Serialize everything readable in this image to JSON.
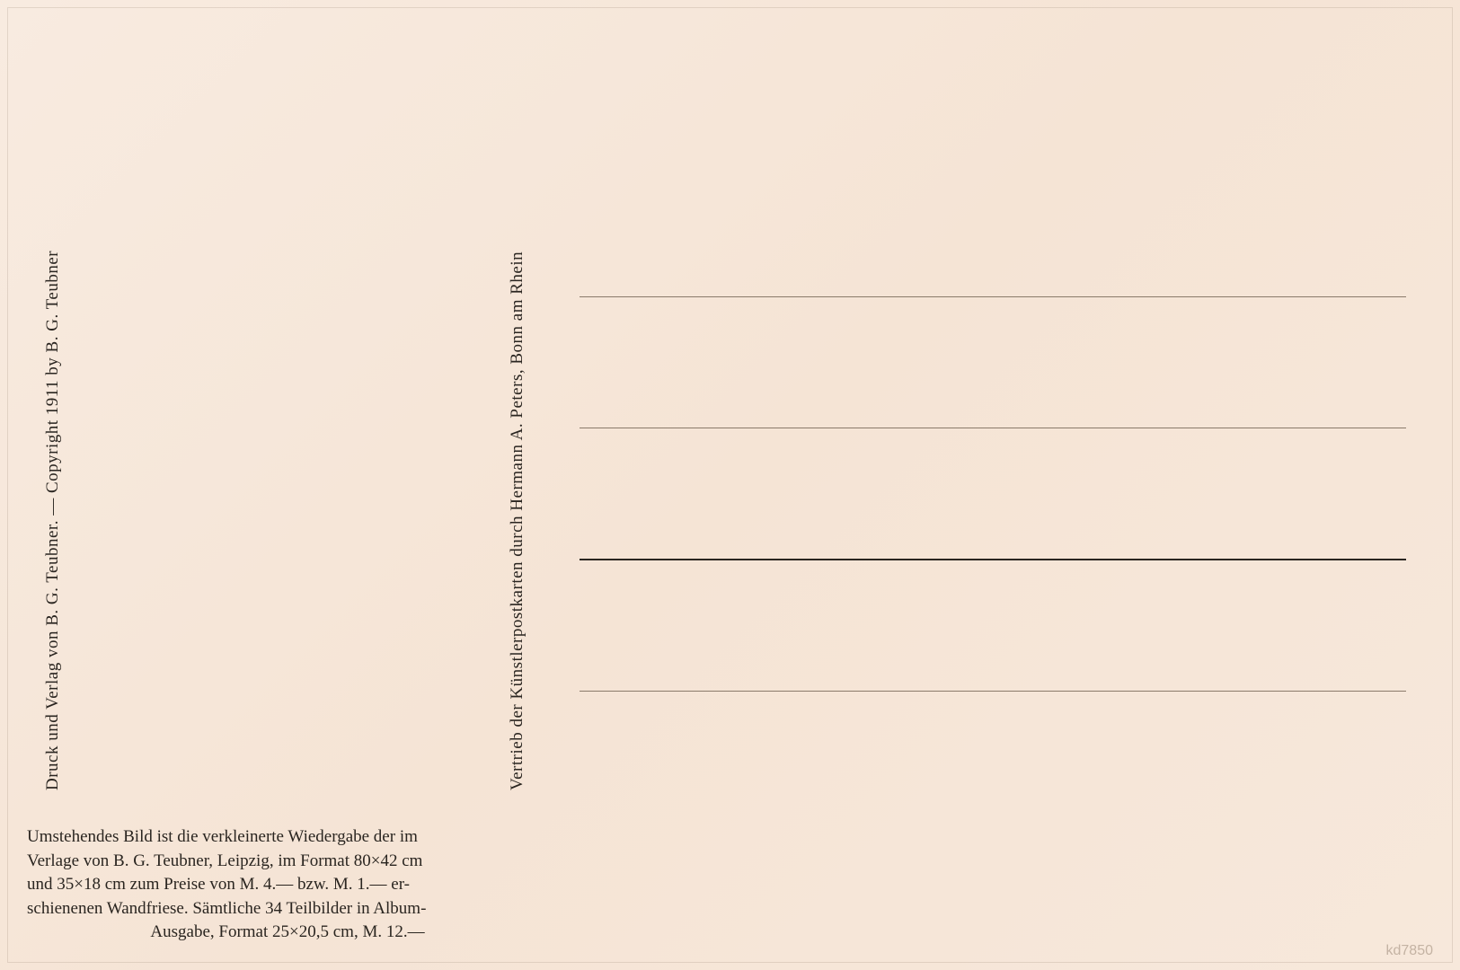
{
  "postcard": {
    "left_vertical_text": "Druck und Verlag von B. G. Teubner. — Copyright 1911 by B. G. Teubner",
    "center_vertical_text": "Vertrieb der Künstlerpostkarten durch Hermann A. Peters, Bonn am Rhein",
    "bottom_paragraph": {
      "line1": "Umstehendes Bild ist die verkleinerte Wiedergabe der im",
      "line2": "Verlage von B. G. Teubner, Leipzig, im Format 80×42 cm",
      "line3": "und 35×18 cm zum Preise von M. 4.— bzw. M. 1.— er-",
      "line4": "schienenen Wandfriese. Sämtliche 34 Teilbilder in Album-",
      "line5": "Ausgabe, Format 25×20,5 cm, M. 12.—"
    },
    "watermark": "kd7850",
    "colors": {
      "background": "#f5e6d8",
      "text": "#2a2520",
      "line_light": "#8a7a6a",
      "line_dark": "#2a2520"
    },
    "address_area": {
      "line_count": 4,
      "thick_line_index": 2
    }
  }
}
